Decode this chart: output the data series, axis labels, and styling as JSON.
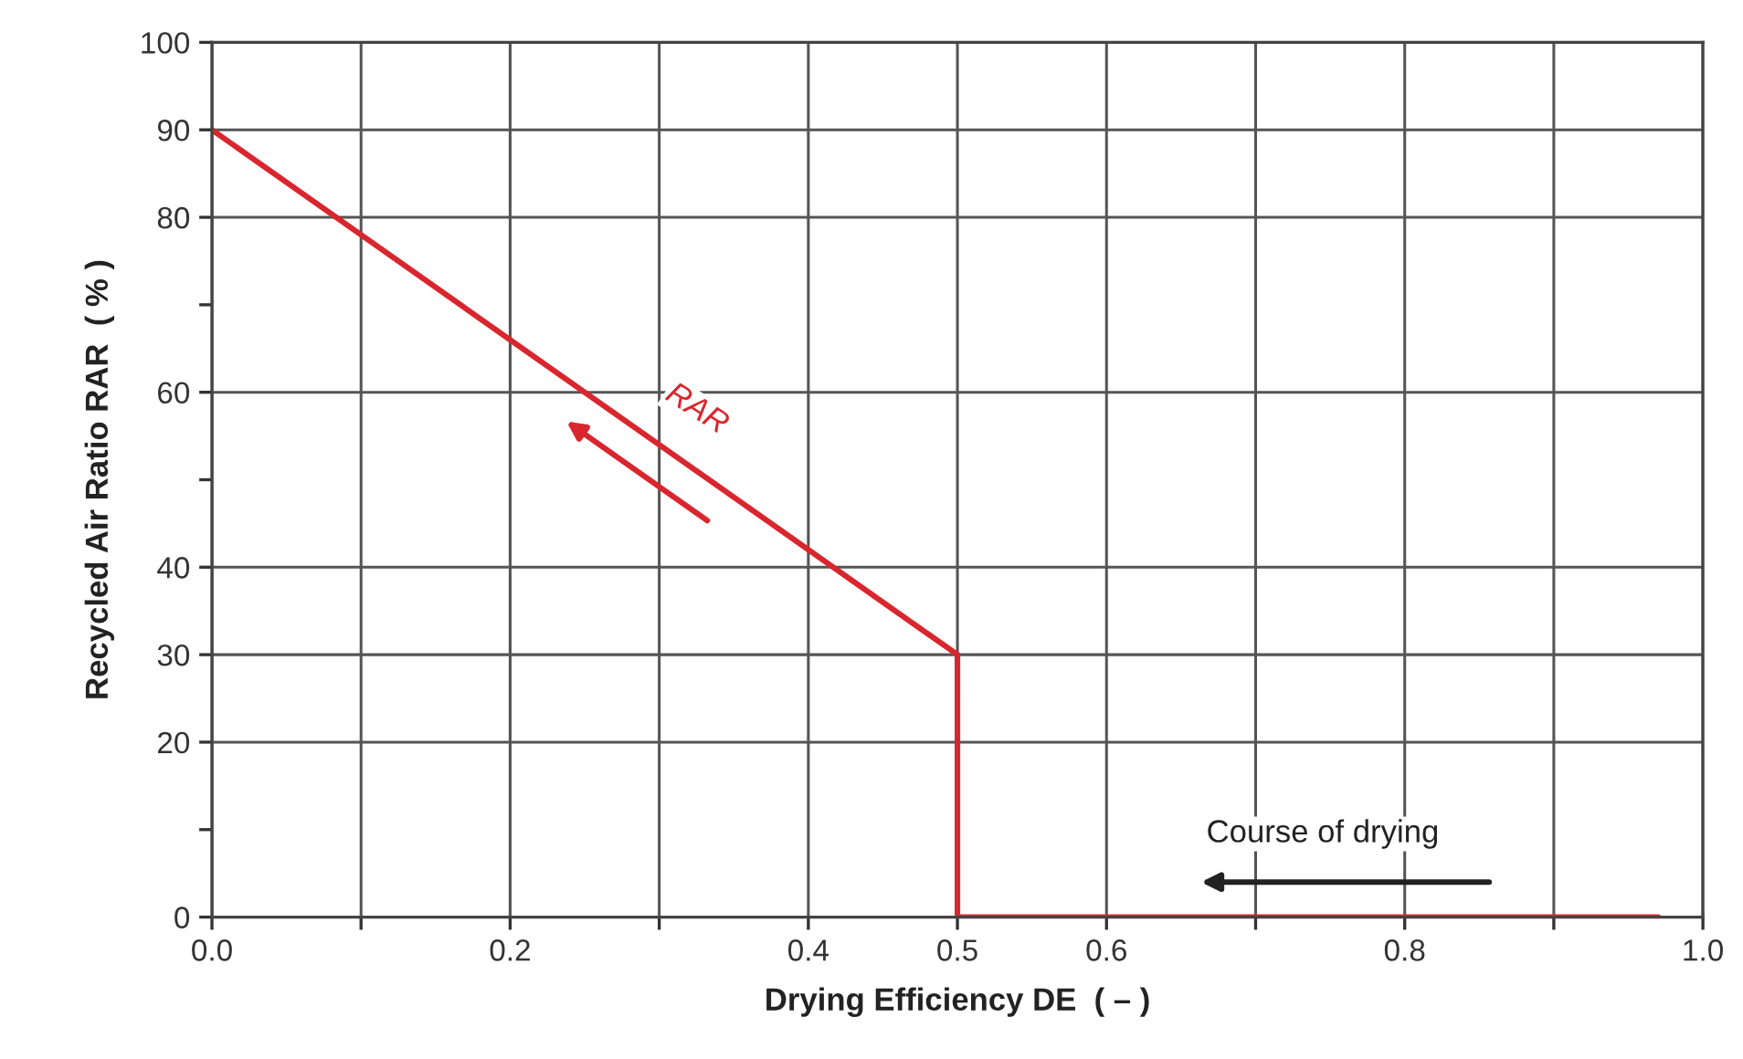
{
  "chart_data": {
    "type": "line",
    "xlabel": "Drying Efficiency DE  ( – )",
    "ylabel": "Recycled Air Ratio RAR  ( % )",
    "series": [
      {
        "color": "#d9262e",
        "x": [
          0,
          0.5,
          0.5,
          0.97
        ],
        "values": [
          90,
          30,
          0,
          0
        ]
      }
    ],
    "xlim": [
      0,
      1
    ],
    "ylim": [
      0,
      100
    ],
    "xticks": [
      {
        "value": 0,
        "label": "0.0"
      },
      {
        "value": 0.1,
        "label": null
      },
      {
        "value": 0.2,
        "label": "0.2"
      },
      {
        "value": 0.3,
        "label": null
      },
      {
        "value": 0.4,
        "label": "0.4"
      },
      {
        "value": 0.5,
        "label": "0.5"
      },
      {
        "value": 0.6,
        "label": "0.6"
      },
      {
        "value": 0.7,
        "label": null
      },
      {
        "value": 0.8,
        "label": "0.8"
      },
      {
        "value": 0.9,
        "label": null
      },
      {
        "value": 1.0,
        "label": "1.0"
      }
    ],
    "yticks": [
      0,
      {
        "value": 10,
        "label": null
      },
      20,
      30,
      40,
      {
        "value": 50,
        "label": null
      },
      60,
      {
        "value": 70,
        "label": null
      },
      80,
      90,
      100
    ],
    "annotations": [
      "RAR",
      "Course of drying"
    ],
    "grid": true,
    "marker": "none",
    "line_style": "solid",
    "legend": false
  }
}
